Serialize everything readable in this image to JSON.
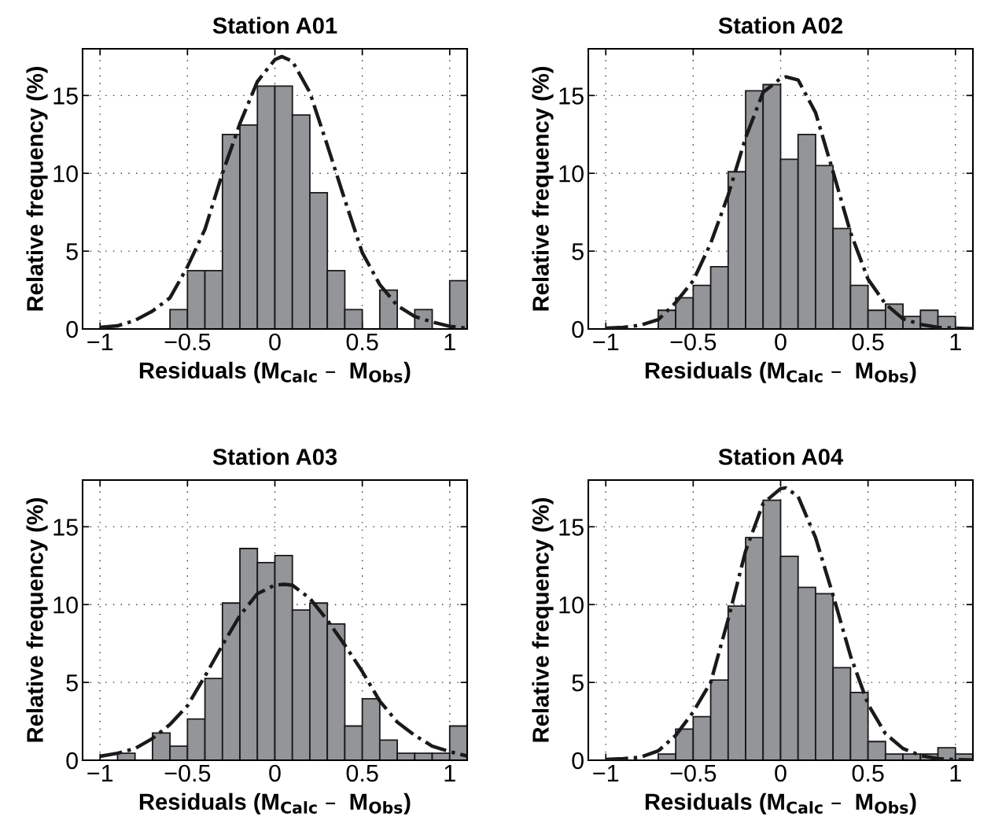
{
  "chart_data": [
    {
      "type": "histogram",
      "title": "Station A01",
      "xlabel": "Residuals (M$_{Calc}$ –  M$_{Obs}$)",
      "ylabel": "Relative frequency (%)",
      "xlim": [
        -1.1,
        1.1
      ],
      "ylim": [
        0,
        18
      ],
      "grid": true,
      "xticks": [
        -1,
        -0.5,
        0,
        0.5,
        1
      ],
      "yticks": [
        0,
        5,
        10,
        15
      ],
      "series": [
        {
          "type": "histogram",
          "color": "#939598",
          "bins": [
            -0.6,
            -0.5,
            -0.4,
            -0.3,
            -0.2,
            -0.1,
            0,
            0.1,
            0.2,
            0.3,
            0.4,
            0.5,
            0.6,
            0.7,
            0.8,
            0.9,
            1.0,
            1.1
          ],
          "values": [
            1.25,
            3.75,
            3.75,
            12.5,
            13.1,
            15.6,
            15.6,
            13.75,
            8.75,
            3.75,
            1.25,
            0,
            2.5,
            0,
            1.25,
            0,
            3.1
          ]
        },
        {
          "type": "line",
          "color": "#1a1a1a",
          "line_style": "dashdot",
          "x": [
            -1,
            -0.9,
            -0.8,
            -0.7,
            -0.6,
            -0.5,
            -0.4,
            -0.3,
            -0.2,
            -0.1,
            0,
            0.04,
            0.1,
            0.2,
            0.3,
            0.4,
            0.5,
            0.6,
            0.7,
            0.8,
            0.9,
            1.0,
            1.1
          ],
          "values": [
            0.1,
            0.2,
            0.55,
            1.15,
            2.0,
            4.0,
            6.4,
            10.0,
            13.2,
            15.9,
            17.3,
            17.5,
            17.2,
            15.2,
            11.8,
            8.3,
            4.9,
            2.85,
            1.5,
            0.8,
            0.45,
            0.17,
            0.05
          ]
        }
      ]
    },
    {
      "type": "histogram",
      "title": "Station A02",
      "xlabel": "Residuals (M$_{Calc}$ –  M$_{Obs}$)",
      "ylabel": "Relative frequency (%)",
      "xlim": [
        -1.1,
        1.1
      ],
      "ylim": [
        0,
        18
      ],
      "grid": true,
      "xticks": [
        -1,
        -0.5,
        0,
        0.5,
        1
      ],
      "yticks": [
        0,
        5,
        10,
        15
      ],
      "series": [
        {
          "type": "histogram",
          "color": "#939598",
          "bins": [
            -0.7,
            -0.6,
            -0.5,
            -0.4,
            -0.3,
            -0.2,
            -0.1,
            0,
            0.1,
            0.2,
            0.3,
            0.4,
            0.5,
            0.6,
            0.7,
            0.8,
            0.9,
            1.0
          ],
          "values": [
            1.2,
            2.0,
            2.8,
            4.0,
            10.1,
            15.3,
            15.7,
            10.9,
            12.5,
            10.5,
            6.45,
            2.8,
            1.2,
            1.6,
            0.8,
            1.2,
            0.8
          ]
        },
        {
          "type": "line",
          "color": "#1a1a1a",
          "line_style": "dashdot",
          "x": [
            -1,
            -0.9,
            -0.8,
            -0.7,
            -0.6,
            -0.5,
            -0.4,
            -0.3,
            -0.2,
            -0.1,
            0,
            0.03,
            0.1,
            0.2,
            0.3,
            0.4,
            0.5,
            0.6,
            0.7,
            0.8,
            0.9,
            1.0,
            1.1
          ],
          "values": [
            0.05,
            0.1,
            0.25,
            0.6,
            1.7,
            3.1,
            5.5,
            8.6,
            12.3,
            15.2,
            16.1,
            16.2,
            16.0,
            13.9,
            10.1,
            6.2,
            3.2,
            1.6,
            0.65,
            0.3,
            0.1,
            0.05,
            0.02
          ]
        }
      ]
    },
    {
      "type": "histogram",
      "title": "Station A03",
      "xlabel": "Residuals (M$_{Calc}$ –  M$_{Obs}$)",
      "ylabel": "Relative frequency (%)",
      "xlim": [
        -1.1,
        1.1
      ],
      "ylim": [
        0,
        18
      ],
      "grid": true,
      "xticks": [
        -1,
        -0.5,
        0,
        0.5,
        1
      ],
      "yticks": [
        0,
        5,
        10,
        15
      ],
      "series": [
        {
          "type": "histogram",
          "color": "#939598",
          "bins": [
            -0.9,
            -0.8,
            -0.7,
            -0.6,
            -0.5,
            -0.4,
            -0.3,
            -0.2,
            -0.1,
            0,
            0.1,
            0.2,
            0.3,
            0.4,
            0.5,
            0.6,
            0.7,
            0.8,
            0.9,
            1.0,
            1.1
          ],
          "values": [
            0.45,
            0,
            1.75,
            0.9,
            2.65,
            5.25,
            10.1,
            13.6,
            12.7,
            13.15,
            9.65,
            10.1,
            8.75,
            2.2,
            3.95,
            1.3,
            0.45,
            0.45,
            0.45,
            2.2
          ]
        },
        {
          "type": "line",
          "color": "#1a1a1a",
          "line_style": "dashdot",
          "x": [
            -1,
            -0.9,
            -0.8,
            -0.7,
            -0.6,
            -0.5,
            -0.4,
            -0.3,
            -0.2,
            -0.1,
            0,
            0.05,
            0.1,
            0.2,
            0.3,
            0.4,
            0.5,
            0.6,
            0.7,
            0.8,
            0.9,
            1.0,
            1.1
          ],
          "values": [
            0.25,
            0.45,
            0.75,
            1.4,
            2.3,
            3.5,
            5.4,
            7.4,
            9.3,
            10.7,
            11.25,
            11.3,
            11.25,
            10.4,
            9.0,
            7.4,
            5.7,
            3.8,
            2.45,
            1.6,
            0.9,
            0.55,
            0.27
          ]
        }
      ]
    },
    {
      "type": "histogram",
      "title": "Station A04",
      "xlabel": "Residuals (M$_{Calc}$ –  M$_{Obs}$)",
      "ylabel": "Relative frequency (%)",
      "xlim": [
        -1.1,
        1.1
      ],
      "ylim": [
        0,
        18
      ],
      "grid": true,
      "xticks": [
        -1,
        -0.5,
        0,
        0.5,
        1
      ],
      "yticks": [
        0,
        5,
        10,
        15
      ],
      "series": [
        {
          "type": "histogram",
          "color": "#939598",
          "bins": [
            -0.7,
            -0.6,
            -0.5,
            -0.4,
            -0.3,
            -0.2,
            -0.1,
            0,
            0.1,
            0.2,
            0.3,
            0.4,
            0.5,
            0.6,
            0.7,
            0.8,
            0.9,
            1.0,
            1.1
          ],
          "values": [
            0.4,
            2.0,
            2.8,
            5.15,
            9.9,
            14.3,
            16.7,
            13.1,
            11.1,
            10.7,
            5.95,
            4.35,
            1.2,
            0.4,
            0.4,
            0.4,
            0.8,
            0.4
          ]
        },
        {
          "type": "line",
          "color": "#1a1a1a",
          "line_style": "dashdot",
          "x": [
            -1,
            -0.9,
            -0.8,
            -0.7,
            -0.6,
            -0.5,
            -0.4,
            -0.3,
            -0.2,
            -0.1,
            0,
            0.03,
            0.1,
            0.2,
            0.3,
            0.4,
            0.5,
            0.6,
            0.7,
            0.8,
            0.9,
            1.0,
            1.1
          ],
          "values": [
            0.05,
            0.1,
            0.2,
            0.6,
            1.6,
            3.1,
            5.0,
            9.05,
            13.45,
            16.5,
            17.45,
            17.5,
            16.95,
            14.3,
            10.6,
            6.7,
            3.6,
            1.7,
            0.75,
            0.3,
            0.1,
            0.05,
            0.02
          ]
        }
      ]
    }
  ]
}
